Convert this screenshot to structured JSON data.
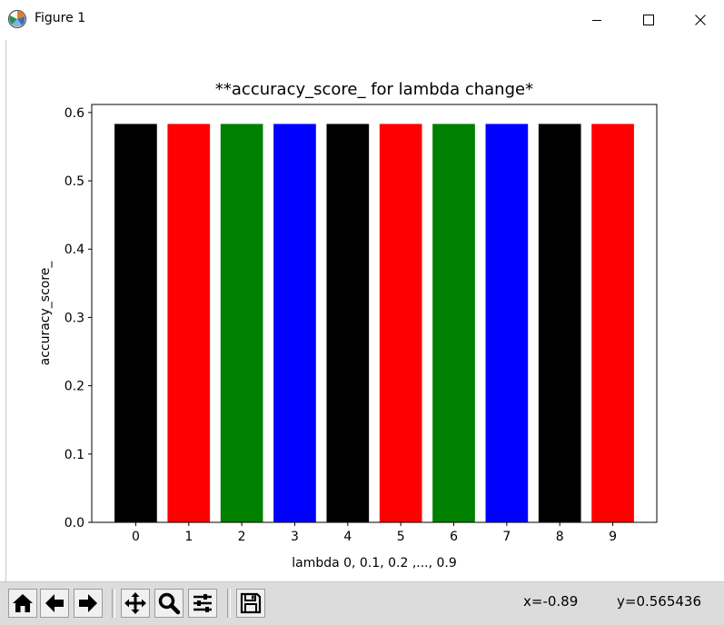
{
  "window": {
    "title": "Figure 1",
    "icon": "matplotlib-icon",
    "controls": [
      "minimize-icon",
      "maximize-icon",
      "close-icon"
    ]
  },
  "chart_data": {
    "type": "bar",
    "title": "**accuracy_score_ for lambda change*",
    "xlabel": "lambda 0, 0.1, 0.2 ,..., 0.9",
    "ylabel": "accuracy_score_",
    "categories": [
      "0",
      "1",
      "2",
      "3",
      "4",
      "5",
      "6",
      "7",
      "8",
      "9"
    ],
    "values": [
      0.5833,
      0.5833,
      0.5833,
      0.5833,
      0.5833,
      0.5833,
      0.5833,
      0.5833,
      0.5833,
      0.5833
    ],
    "colors": [
      "#000000",
      "#ff0000",
      "#008000",
      "#0000ff",
      "#000000",
      "#ff0000",
      "#008000",
      "#0000ff",
      "#000000",
      "#ff0000"
    ],
    "ylim": [
      0,
      0.6118
    ],
    "yticks": [
      "0.0",
      "0.1",
      "0.2",
      "0.3",
      "0.4",
      "0.5",
      "0.6"
    ],
    "grid": false,
    "legend": false
  },
  "toolbar": {
    "buttons": [
      "home-icon",
      "back-icon",
      "forward-icon",
      "pan-icon",
      "zoom-icon",
      "configure-subplots-icon",
      "save-icon"
    ],
    "x_readout": "x=-0.89",
    "y_readout": "y=0.565436"
  }
}
